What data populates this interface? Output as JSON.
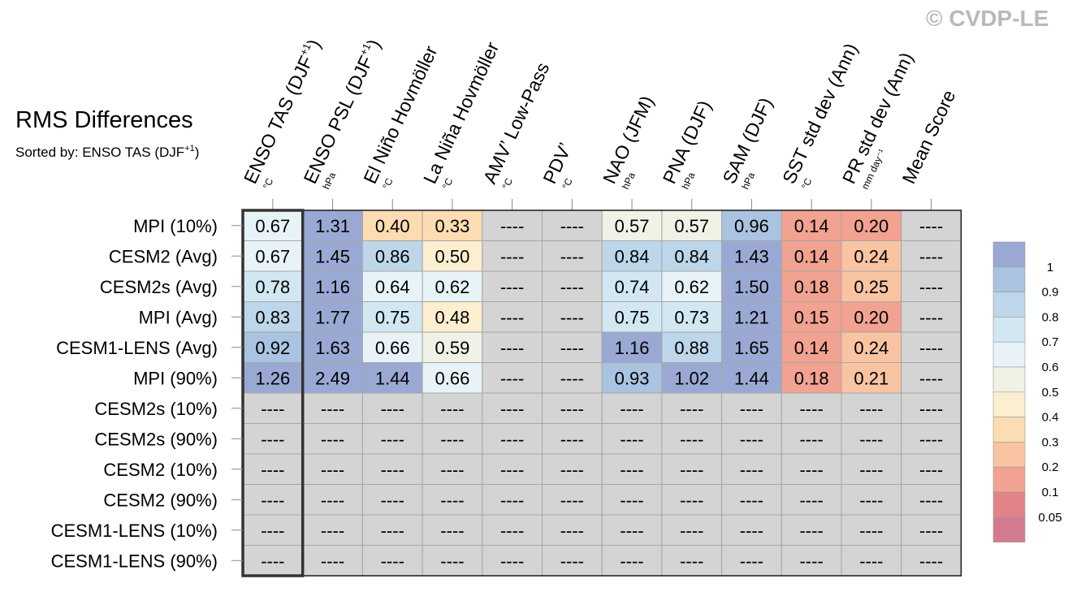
{
  "copyright": "© CVDP-LE",
  "chart_data": {
    "type": "heatmap",
    "title": "RMS Differences",
    "subtitle_prefix": "Sorted by: ENSO TAS (DJF",
    "subtitle_sup": "+1",
    "subtitle_suffix": ")",
    "sorted_column_index": 0,
    "missing_text": "----",
    "columns": [
      {
        "name": "ENSO TAS (DJF",
        "sup": "+1",
        "suffix": ")",
        "unit": "°C"
      },
      {
        "name": "ENSO PSL (DJF",
        "sup": "+1",
        "suffix": ")",
        "unit": "hPa"
      },
      {
        "name": "El Niño Hovmöller",
        "sup": "",
        "suffix": "",
        "unit": "°C"
      },
      {
        "name": "La Niña Hovmöller",
        "sup": "",
        "suffix": "",
        "unit": "°C"
      },
      {
        "name": "AMV’ Low-Pass",
        "sup": "",
        "suffix": "",
        "unit": "°C"
      },
      {
        "name": "PDV’",
        "sup": "",
        "suffix": "",
        "unit": "°C"
      },
      {
        "name": "NAO (JFM)",
        "sup": "",
        "suffix": "",
        "unit": "hPa"
      },
      {
        "name": "PNA (DJF)",
        "sup": "",
        "suffix": "",
        "unit": "hPa"
      },
      {
        "name": "SAM (DJF)",
        "sup": "",
        "suffix": "",
        "unit": "hPa"
      },
      {
        "name": "SST std dev (Ann)",
        "sup": "",
        "suffix": "",
        "unit": "°C"
      },
      {
        "name": "PR std dev (Ann)",
        "sup": "",
        "suffix": "",
        "unit": "mm day⁻¹"
      },
      {
        "name": "Mean Score",
        "sup": "",
        "suffix": "",
        "unit": ""
      }
    ],
    "rows": [
      {
        "name": "MPI (10%)",
        "values": [
          "0.67",
          "1.31",
          "0.40",
          "0.33",
          null,
          null,
          "0.57",
          "0.57",
          "0.96",
          "0.14",
          "0.20",
          null
        ]
      },
      {
        "name": "CESM2 (Avg)",
        "values": [
          "0.67",
          "1.45",
          "0.86",
          "0.50",
          null,
          null,
          "0.84",
          "0.84",
          "1.43",
          "0.14",
          "0.24",
          null
        ]
      },
      {
        "name": "CESM2s (Avg)",
        "values": [
          "0.78",
          "1.16",
          "0.64",
          "0.62",
          null,
          null,
          "0.74",
          "0.62",
          "1.50",
          "0.18",
          "0.25",
          null
        ]
      },
      {
        "name": "MPI (Avg)",
        "values": [
          "0.83",
          "1.77",
          "0.75",
          "0.48",
          null,
          null,
          "0.75",
          "0.73",
          "1.21",
          "0.15",
          "0.20",
          null
        ]
      },
      {
        "name": "CESM1-LENS (Avg)",
        "values": [
          "0.92",
          "1.63",
          "0.66",
          "0.59",
          null,
          null,
          "1.16",
          "0.88",
          "1.65",
          "0.14",
          "0.24",
          null
        ]
      },
      {
        "name": "MPI (90%)",
        "values": [
          "1.26",
          "2.49",
          "1.44",
          "0.66",
          null,
          null,
          "0.93",
          "1.02",
          "1.44",
          "0.18",
          "0.21",
          null
        ]
      },
      {
        "name": "CESM2s (10%)",
        "values": [
          null,
          null,
          null,
          null,
          null,
          null,
          null,
          null,
          null,
          null,
          null,
          null
        ]
      },
      {
        "name": "CESM2s (90%)",
        "values": [
          null,
          null,
          null,
          null,
          null,
          null,
          null,
          null,
          null,
          null,
          null,
          null
        ]
      },
      {
        "name": "CESM2 (10%)",
        "values": [
          null,
          null,
          null,
          null,
          null,
          null,
          null,
          null,
          null,
          null,
          null,
          null
        ]
      },
      {
        "name": "CESM2 (90%)",
        "values": [
          null,
          null,
          null,
          null,
          null,
          null,
          null,
          null,
          null,
          null,
          null,
          null
        ]
      },
      {
        "name": "CESM1-LENS (10%)",
        "values": [
          null,
          null,
          null,
          null,
          null,
          null,
          null,
          null,
          null,
          null,
          null,
          null
        ]
      },
      {
        "name": "CESM1-LENS (90%)",
        "values": [
          null,
          null,
          null,
          null,
          null,
          null,
          null,
          null,
          null,
          null,
          null,
          null
        ]
      }
    ],
    "colorbar": {
      "labels": [
        "1",
        "0.9",
        "0.8",
        "0.7",
        "0.6",
        "0.5",
        "0.4",
        "0.3",
        "0.2",
        "0.1",
        "0.05"
      ],
      "colors": [
        "#9aa9d4",
        "#a9c3e0",
        "#bdd6e9",
        "#d2e7f1",
        "#e7f3f7",
        "#f2f1e6",
        "#fcefd0",
        "#fcdcb2",
        "#f9c4a2",
        "#f2a291",
        "#e38388",
        "#d47a8f"
      ],
      "missing_color": "#d4d4d4",
      "thresholds": [
        1.0,
        0.9,
        0.8,
        0.7,
        0.6,
        0.5,
        0.4,
        0.3,
        0.2,
        0.1,
        0.05
      ]
    }
  }
}
